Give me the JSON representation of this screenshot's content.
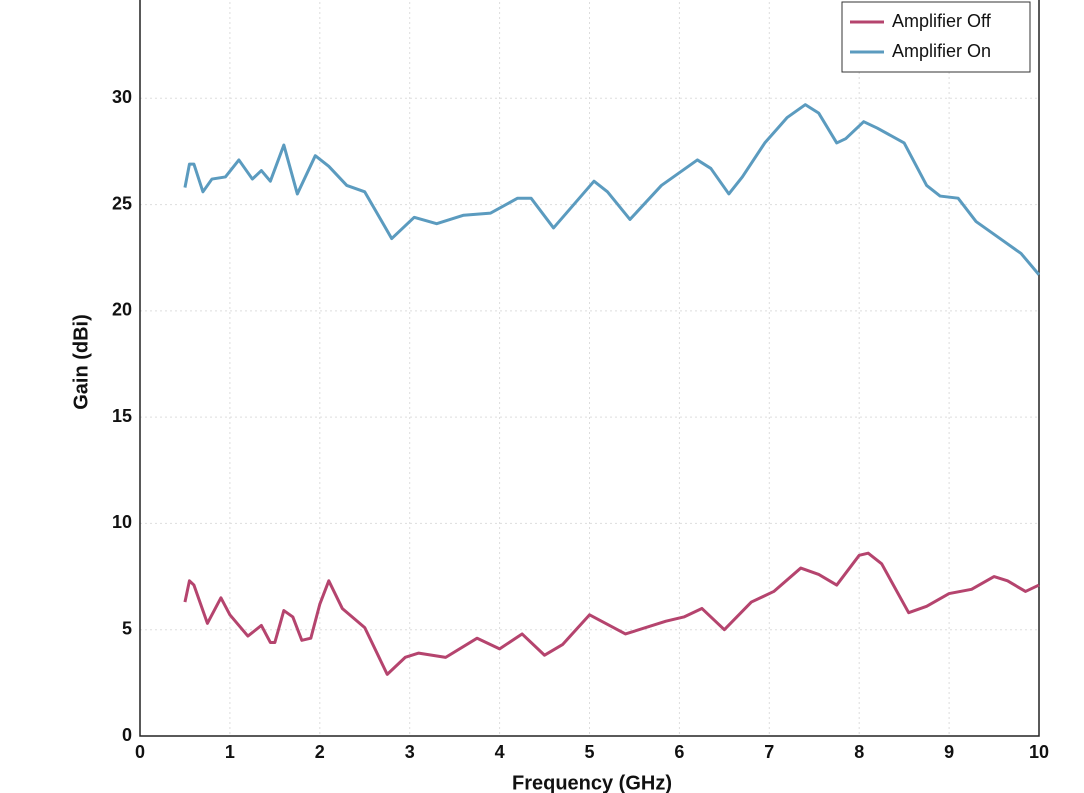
{
  "chart_data": {
    "type": "line",
    "xlabel": "Frequency (GHz)",
    "ylabel": "Gain (dBi)",
    "xlim": [
      0,
      10
    ],
    "xticks": [
      0,
      1,
      2,
      3,
      4,
      5,
      6,
      7,
      8,
      9,
      10
    ],
    "ylim": [
      0,
      35
    ],
    "yticks": [
      0,
      5,
      10,
      15,
      20,
      25,
      30
    ],
    "grid": true,
    "legend": "upper right",
    "series": [
      {
        "name": "Amplifier Off",
        "color": "#b5446e",
        "x": [
          0.5,
          0.55,
          0.6,
          0.75,
          0.9,
          1.0,
          1.1,
          1.2,
          1.35,
          1.45,
          1.5,
          1.6,
          1.7,
          1.8,
          1.9,
          2.0,
          2.1,
          2.25,
          2.5,
          2.75,
          2.95,
          3.1,
          3.4,
          3.75,
          4.0,
          4.25,
          4.5,
          4.7,
          5.0,
          5.4,
          5.85,
          6.05,
          6.25,
          6.5,
          6.8,
          7.05,
          7.35,
          7.55,
          7.75,
          8.0,
          8.1,
          8.25,
          8.55,
          8.75,
          9.0,
          9.25,
          9.5,
          9.65,
          9.85,
          10
        ],
        "values": [
          6.3,
          7.3,
          7.1,
          5.3,
          6.5,
          5.7,
          5.2,
          4.7,
          5.2,
          4.4,
          4.4,
          5.9,
          5.6,
          4.5,
          4.6,
          6.2,
          7.3,
          6.0,
          5.1,
          2.9,
          3.7,
          3.9,
          3.7,
          4.6,
          4.1,
          4.8,
          3.8,
          4.3,
          5.7,
          4.8,
          5.4,
          5.6,
          6.0,
          5.0,
          6.3,
          6.8,
          7.9,
          7.6,
          7.1,
          8.5,
          8.6,
          8.1,
          5.8,
          6.1,
          6.7,
          6.9,
          7.5,
          7.3,
          6.8,
          7.1
        ]
      },
      {
        "name": "Amplifier On",
        "color": "#5b9bbf",
        "x": [
          0.5,
          0.55,
          0.6,
          0.7,
          0.8,
          0.95,
          1.1,
          1.25,
          1.35,
          1.45,
          1.6,
          1.75,
          1.95,
          2.1,
          2.3,
          2.5,
          2.8,
          3.05,
          3.3,
          3.6,
          3.9,
          4.2,
          4.35,
          4.6,
          5.05,
          5.2,
          5.45,
          5.8,
          6.0,
          6.2,
          6.35,
          6.55,
          6.7,
          6.95,
          7.2,
          7.4,
          7.55,
          7.75,
          7.85,
          8.05,
          8.2,
          8.5,
          8.75,
          8.9,
          9.1,
          9.3,
          9.6,
          9.8,
          10
        ],
        "values": [
          25.8,
          26.9,
          26.9,
          25.6,
          26.2,
          26.3,
          27.1,
          26.2,
          26.6,
          26.1,
          27.8,
          25.5,
          27.3,
          26.8,
          25.9,
          25.6,
          23.4,
          24.4,
          24.1,
          24.5,
          24.6,
          25.3,
          25.3,
          23.9,
          26.1,
          25.6,
          24.3,
          25.9,
          26.5,
          27.1,
          26.7,
          25.5,
          26.3,
          27.9,
          29.1,
          29.7,
          29.3,
          27.9,
          28.1,
          28.9,
          28.6,
          27.9,
          25.9,
          25.4,
          25.3,
          24.2,
          23.3,
          22.7,
          21.7
        ]
      }
    ]
  }
}
